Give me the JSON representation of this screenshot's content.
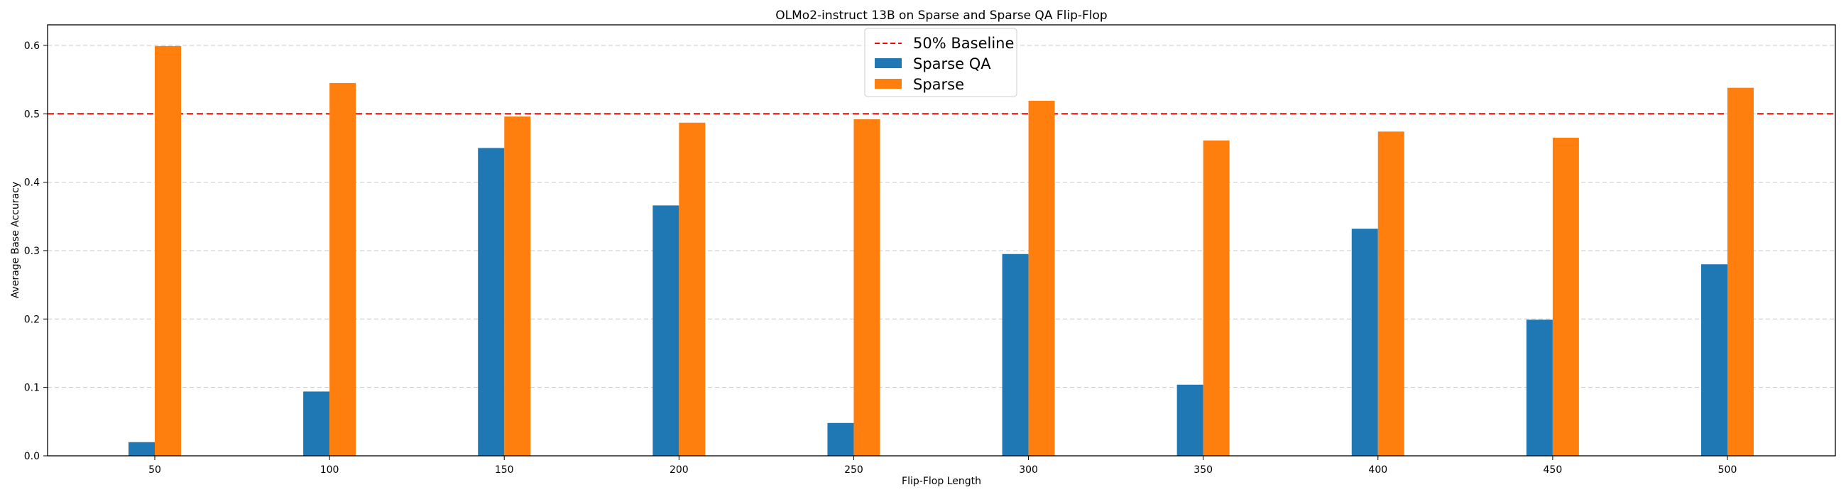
{
  "chart_data": {
    "type": "bar",
    "title": "OLMo2-instruct 13B on Sparse and Sparse QA Flip-Flop",
    "xlabel": "Flip-Flop Length",
    "ylabel": "Average Base Accuracy",
    "categories": [
      "50",
      "100",
      "150",
      "200",
      "250",
      "300",
      "350",
      "400",
      "450",
      "500"
    ],
    "series": [
      {
        "name": "Sparse QA",
        "color": "#1f77b4",
        "values": [
          0.02,
          0.094,
          0.45,
          0.366,
          0.048,
          0.295,
          0.104,
          0.332,
          0.199,
          0.28
        ]
      },
      {
        "name": "Sparse",
        "color": "#ff7f0e",
        "values": [
          0.599,
          0.545,
          0.496,
          0.487,
          0.492,
          0.519,
          0.461,
          0.474,
          0.465,
          0.538
        ]
      }
    ],
    "baseline": {
      "name": "50% Baseline",
      "value": 0.5,
      "color": "#ff0000",
      "style": "dashed"
    },
    "ylim": [
      0,
      0.63
    ],
    "yticks": [
      "0.0",
      "0.1",
      "0.2",
      "0.3",
      "0.4",
      "0.5",
      "0.6"
    ],
    "grid": "y-dashed",
    "legend_position": "top-center"
  }
}
